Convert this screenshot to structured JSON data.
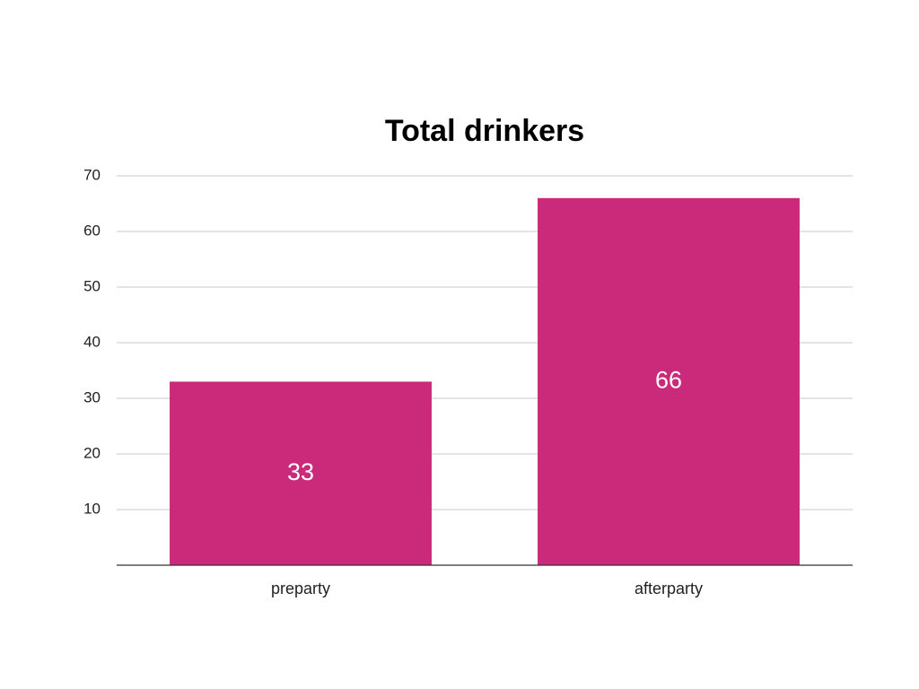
{
  "chart_data": {
    "type": "bar",
    "title": "Total drinkers",
    "categories": [
      "preparty",
      "afterparty"
    ],
    "values": [
      33,
      66
    ],
    "color": "#cb2a7b",
    "ylim": [
      0,
      70
    ],
    "yticks": [
      10,
      20,
      30,
      40,
      50,
      60,
      70
    ],
    "grid": true
  }
}
